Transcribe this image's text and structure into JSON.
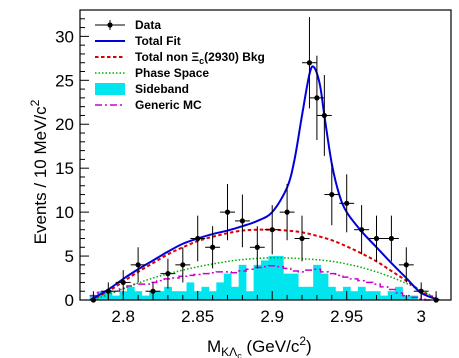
{
  "chart_data": {
    "type": "scatter",
    "title": "",
    "xlabel": "M_{KΛc} (GeV/c²)",
    "xlabel_main": "M",
    "xlabel_sub": "KΛ",
    "xlabel_subsub": "c",
    "xlabel_unit": " (GeV/c",
    "xlabel_unit_sup": "2",
    "xlabel_unit_close": ")",
    "ylabel": "Events / 10 MeV/c²",
    "ylabel_main": "Events / 10 MeV/c",
    "ylabel_sup": "2",
    "xlim": [
      2.771,
      3.02
    ],
    "ylim": [
      0,
      33
    ],
    "x_ticks": [
      2.8,
      2.85,
      2.9,
      2.95,
      3.0
    ],
    "x_tick_labels": [
      "2.8",
      "2.85",
      "2.9",
      "2.95",
      "3"
    ],
    "y_ticks": [
      0,
      5,
      10,
      15,
      20,
      25,
      30
    ],
    "y_tick_labels": [
      "0",
      "5",
      "10",
      "15",
      "20",
      "25",
      "30"
    ],
    "grid": false,
    "legend_position": "top-left",
    "legend": [
      {
        "key": "data",
        "label": "Data"
      },
      {
        "key": "fit",
        "label": "Total Fit"
      },
      {
        "key": "bkg",
        "label": "Total non Ξ",
        "label_sub": "c",
        "label_tail": "(2930) Bkg"
      },
      {
        "key": "phase",
        "label": "Phase Space"
      },
      {
        "key": "sideband",
        "label": "Sideband"
      },
      {
        "key": "generic",
        "label": "Generic MC"
      }
    ],
    "series": [
      {
        "name": "Data",
        "type": "errorbar",
        "color": "#000000",
        "x": [
          2.78,
          2.79,
          2.8,
          2.81,
          2.82,
          2.83,
          2.84,
          2.85,
          2.86,
          2.87,
          2.88,
          2.89,
          2.9,
          2.91,
          2.92,
          2.925,
          2.93,
          2.935,
          2.94,
          2.95,
          2.96,
          2.97,
          2.98,
          2.99,
          3.0,
          3.01
        ],
        "y": [
          0,
          1,
          2,
          4,
          1,
          3,
          4,
          7,
          6,
          10,
          9,
          6,
          8,
          10,
          7,
          27,
          23,
          21,
          12,
          11,
          8,
          7,
          7,
          4,
          1,
          0
        ],
        "yerr": [
          1.0,
          1.0,
          1.4,
          2.0,
          1.0,
          1.7,
          2.0,
          2.6,
          2.4,
          3.2,
          3.0,
          2.4,
          2.8,
          3.2,
          2.6,
          5.2,
          4.8,
          4.6,
          3.5,
          3.3,
          2.8,
          2.6,
          2.6,
          2.0,
          1.0,
          1.0
        ]
      },
      {
        "name": "Total Fit",
        "type": "line",
        "color": "#0000dd",
        "x": [
          2.778,
          2.79,
          2.8,
          2.81,
          2.82,
          2.83,
          2.84,
          2.85,
          2.86,
          2.87,
          2.88,
          2.89,
          2.9,
          2.91,
          2.915,
          2.92,
          2.925,
          2.928,
          2.932,
          2.935,
          2.94,
          2.945,
          2.95,
          2.96,
          2.97,
          2.98,
          2.99,
          3.0,
          3.012
        ],
        "y": [
          0,
          1.2,
          2.4,
          3.5,
          4.5,
          5.5,
          6.4,
          7.0,
          7.5,
          7.9,
          8.4,
          9.0,
          10.0,
          12.8,
          16.0,
          21.0,
          25.7,
          26.5,
          24.5,
          21.0,
          15.5,
          12.0,
          10.0,
          7.8,
          6.0,
          4.2,
          2.5,
          0.8,
          0
        ]
      },
      {
        "name": "Total non Ξc(2930) Bkg",
        "type": "line",
        "color": "#dd0000",
        "x": [
          2.778,
          2.79,
          2.8,
          2.81,
          2.82,
          2.83,
          2.84,
          2.85,
          2.86,
          2.87,
          2.88,
          2.89,
          2.9,
          2.91,
          2.92,
          2.93,
          2.94,
          2.95,
          2.96,
          2.97,
          2.98,
          2.99,
          3.0,
          3.012
        ],
        "y": [
          0,
          1.0,
          2.1,
          3.2,
          4.2,
          5.2,
          6.0,
          6.7,
          7.2,
          7.6,
          7.9,
          8.0,
          8.0,
          7.9,
          7.7,
          7.3,
          6.8,
          6.1,
          5.3,
          4.4,
          3.3,
          2.2,
          1.0,
          0
        ]
      },
      {
        "name": "Phase Space",
        "type": "line",
        "color": "#00aa00",
        "x": [
          2.778,
          2.79,
          2.8,
          2.82,
          2.84,
          2.86,
          2.88,
          2.9,
          2.92,
          2.94,
          2.96,
          2.98,
          3.0,
          3.012
        ],
        "y": [
          0,
          0.6,
          1.3,
          2.5,
          3.4,
          4.1,
          4.6,
          4.8,
          4.7,
          4.4,
          3.7,
          2.6,
          1.1,
          0
        ]
      },
      {
        "name": "Sideband",
        "type": "hist",
        "color": "#00e5ee",
        "bin_width": 0.005,
        "x": [
          2.78,
          2.785,
          2.79,
          2.795,
          2.8,
          2.805,
          2.81,
          2.815,
          2.82,
          2.825,
          2.83,
          2.835,
          2.84,
          2.845,
          2.85,
          2.855,
          2.86,
          2.865,
          2.87,
          2.875,
          2.88,
          2.885,
          2.89,
          2.895,
          2.9,
          2.905,
          2.91,
          2.915,
          2.92,
          2.925,
          2.93,
          2.935,
          2.94,
          2.945,
          2.95,
          2.955,
          2.96,
          2.965,
          2.97,
          2.975,
          2.98,
          2.985,
          2.99,
          2.995,
          3.0,
          3.005
        ],
        "y": [
          0.5,
          1,
          1,
          0.5,
          1,
          1.5,
          1,
          0.5,
          1,
          1,
          1.5,
          1,
          1,
          2,
          1,
          1.5,
          1,
          2,
          3,
          1.5,
          4,
          1,
          4,
          4.5,
          5,
          5,
          3,
          3,
          1.5,
          1.5,
          4,
          3,
          1.5,
          1,
          1.5,
          1,
          1.5,
          1,
          1,
          0.5,
          1,
          1.5,
          0.5,
          0.5,
          0,
          0
        ]
      },
      {
        "name": "Generic MC",
        "type": "step",
        "color": "#cc00cc",
        "bin_width": 0.005,
        "x": [
          2.78,
          2.785,
          2.79,
          2.795,
          2.8,
          2.805,
          2.81,
          2.815,
          2.82,
          2.825,
          2.83,
          2.835,
          2.84,
          2.845,
          2.85,
          2.855,
          2.86,
          2.865,
          2.87,
          2.875,
          2.88,
          2.885,
          2.89,
          2.895,
          2.9,
          2.905,
          2.91,
          2.915,
          2.92,
          2.925,
          2.93,
          2.935,
          2.94,
          2.945,
          2.95,
          2.955,
          2.96,
          2.965,
          2.97,
          2.975,
          2.98,
          2.985,
          2.99,
          2.995,
          3.0,
          3.005
        ],
        "y": [
          0.5,
          0.8,
          1,
          1,
          1.3,
          1.6,
          1.8,
          1.8,
          2,
          2.2,
          2.4,
          2.5,
          2.7,
          2.8,
          2.9,
          3.0,
          3.1,
          3.2,
          3.2,
          3.1,
          3.3,
          3.5,
          3.7,
          3.8,
          3.9,
          3.8,
          3.6,
          3.3,
          3.2,
          3.4,
          3.5,
          3.2,
          3.0,
          2.8,
          2.6,
          2.4,
          2.2,
          2.0,
          1.8,
          1.5,
          1.2,
          0.8,
          0.5,
          0.3,
          0.1,
          0
        ]
      }
    ]
  }
}
